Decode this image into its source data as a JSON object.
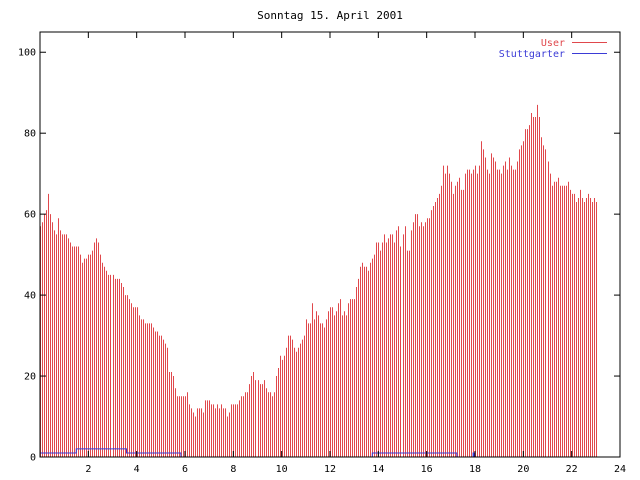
{
  "chart_data": {
    "type": "bar",
    "title": "Sonntag 15. April 2001",
    "xlabel": "",
    "ylabel": "",
    "xlim": [
      0,
      24
    ],
    "ylim": [
      0,
      105
    ],
    "xticks": [
      "2",
      "4",
      "6",
      "8",
      "10",
      "12",
      "14",
      "16",
      "18",
      "20",
      "22",
      "24"
    ],
    "yticks": [
      "0",
      "20",
      "40",
      "60",
      "80",
      "100"
    ],
    "legend_position": "top-right",
    "grid": false,
    "colors": {
      "User": "#e0484c",
      "Stuttgarter": "#3b3bd6",
      "axis": "#000000"
    },
    "series": [
      {
        "name": "User",
        "style": "impulses",
        "interval_minutes": 5,
        "values": [
          57,
          58,
          60,
          61,
          65,
          60,
          58,
          56,
          55,
          59,
          56,
          55,
          55,
          55,
          54,
          53,
          52,
          52,
          52,
          52,
          50,
          48,
          49,
          49,
          50,
          50,
          51,
          53,
          54,
          53,
          50,
          48,
          47,
          46,
          45,
          45,
          45,
          44,
          44,
          44,
          43,
          42,
          40,
          40,
          39,
          38,
          37,
          37,
          37,
          35,
          34,
          34,
          33,
          33,
          33,
          33,
          32,
          31,
          31,
          30,
          30,
          29,
          28,
          27,
          21,
          21,
          20,
          17,
          15,
          15,
          15,
          15,
          15,
          16,
          13,
          12,
          11,
          10,
          12,
          12,
          12,
          11,
          14,
          14,
          14,
          13,
          13,
          12,
          13,
          12,
          13,
          12,
          12,
          10,
          11,
          13,
          13,
          13,
          13,
          14,
          15,
          15,
          16,
          16,
          18,
          20,
          21,
          19,
          19,
          18,
          18,
          19,
          17,
          16,
          16,
          15,
          16,
          20,
          22,
          25,
          24,
          25,
          27,
          30,
          30,
          29,
          27,
          26,
          27,
          28,
          29,
          30,
          34,
          33,
          33,
          38,
          34,
          36,
          35,
          33,
          33,
          32,
          34,
          36,
          37,
          37,
          35,
          36,
          38,
          39,
          35,
          36,
          35,
          38,
          39,
          39,
          39,
          42,
          44,
          47,
          48,
          47,
          47,
          46,
          48,
          49,
          50,
          53,
          53,
          51,
          53,
          55,
          53,
          54,
          55,
          55,
          53,
          56,
          57,
          52,
          55,
          57,
          51,
          51,
          56,
          58,
          60,
          60,
          57,
          58,
          57,
          58,
          59,
          59,
          61,
          62,
          63,
          64,
          65,
          67,
          72,
          70,
          72,
          70,
          68,
          65,
          67,
          68,
          69,
          66,
          66,
          70,
          71,
          71,
          70,
          71,
          72,
          70,
          72,
          78,
          76,
          74,
          71,
          70,
          75,
          74,
          73,
          71,
          71,
          70,
          72,
          73,
          71,
          74,
          72,
          71,
          71,
          73,
          76,
          77,
          78,
          81,
          81,
          82,
          85,
          84,
          84,
          87,
          84,
          79,
          77,
          76,
          73,
          70,
          67,
          68,
          68,
          69,
          67,
          67,
          67,
          67,
          68,
          66,
          65,
          65,
          63,
          64,
          66,
          64,
          63,
          64,
          65,
          64,
          63,
          64,
          63
        ]
      },
      {
        "name": "Stuttgarter",
        "style": "steps",
        "segments": [
          {
            "from": 0,
            "to": 1.5,
            "value": 1
          },
          {
            "from": 1.5,
            "to": 3.58,
            "value": 2
          },
          {
            "from": 3.58,
            "to": 5.83,
            "value": 1
          },
          {
            "from": 5.83,
            "to": 13.75,
            "value": 0
          },
          {
            "from": 13.75,
            "to": 17.25,
            "value": 1
          },
          {
            "from": 17.25,
            "to": 17.92,
            "value": 0
          },
          {
            "from": 17.92,
            "to": 17.96,
            "value": 1
          },
          {
            "from": 17.96,
            "to": 24,
            "value": 0
          }
        ]
      }
    ]
  }
}
